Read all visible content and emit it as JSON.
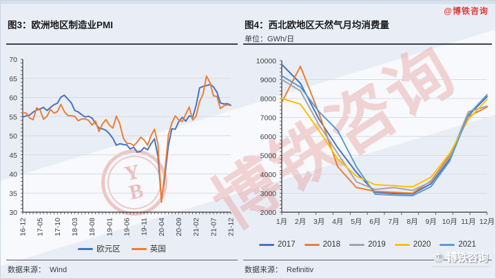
{
  "page": {
    "watermark_handle": "@博铁咨询",
    "watermark_text": "博铁咨询",
    "watermark_seal_top": "Y",
    "watermark_seal_bottom": "B",
    "brand": "博铁咨询"
  },
  "left_panel": {
    "title": "图3：欧洲地区制造业PMI",
    "source_label": "数据来源：",
    "source": "Wind"
  },
  "right_panel": {
    "title": "图4：西北欧地区天然气月均消费量",
    "unit_label": "单位：GWh/日",
    "source_label": "数据来源：",
    "source": "Refinitiv"
  },
  "chart_data": [
    {
      "type": "line",
      "title": "图3：欧洲地区制造业PMI",
      "x_start": "2016-12",
      "x_end": "2021-12",
      "x_freq": "monthly",
      "x_tick_labels": [
        "16-12",
        "17-05",
        "17-10",
        "18-03",
        "18-08",
        "19-01",
        "19-06",
        "19-11",
        "20-04",
        "20-09",
        "21-02",
        "21-07",
        "21-12"
      ],
      "x_tick_indices": [
        0,
        5,
        10,
        15,
        20,
        25,
        30,
        35,
        40,
        45,
        50,
        55,
        60
      ],
      "ylim": [
        30,
        70
      ],
      "ytick_step": 5,
      "grid": true,
      "legend_position": "bottom",
      "series": [
        {
          "name": "欧元区",
          "color": "#4472C4",
          "values": [
            54.9,
            55.2,
            55.4,
            56.2,
            56.7,
            57.0,
            57.4,
            56.6,
            57.4,
            58.1,
            58.5,
            60.1,
            60.6,
            59.6,
            58.6,
            56.6,
            56.2,
            55.5,
            54.9,
            55.1,
            54.6,
            53.2,
            52.0,
            51.8,
            51.4,
            50.5,
            49.3,
            47.5,
            47.9,
            47.7,
            47.6,
            46.5,
            47.0,
            45.7,
            45.9,
            46.9,
            46.3,
            47.9,
            49.2,
            44.5,
            33.4,
            39.4,
            47.4,
            51.8,
            51.7,
            53.7,
            54.8,
            53.8,
            55.2,
            54.8,
            57.9,
            62.5,
            62.9,
            63.1,
            63.4,
            62.8,
            61.4,
            58.6,
            58.3,
            58.4,
            58.0
          ]
        },
        {
          "name": "英国",
          "color": "#ED7D31",
          "values": [
            56.1,
            55.9,
            54.6,
            54.2,
            57.3,
            56.7,
            54.3,
            55.1,
            56.9,
            55.9,
            56.3,
            58.2,
            56.3,
            55.3,
            55.2,
            55.1,
            53.9,
            54.4,
            54.4,
            54.0,
            52.8,
            53.8,
            51.1,
            53.1,
            54.2,
            52.8,
            52.0,
            55.1,
            53.1,
            49.4,
            48.0,
            48.0,
            47.4,
            48.3,
            49.6,
            48.9,
            47.5,
            50.0,
            51.7,
            47.8,
            32.6,
            40.7,
            50.1,
            53.3,
            55.2,
            54.1,
            53.7,
            55.6,
            57.5,
            54.1,
            55.1,
            58.9,
            60.9,
            65.6,
            63.9,
            60.4,
            60.3,
            57.1,
            57.8,
            58.1,
            57.9
          ]
        }
      ]
    },
    {
      "type": "line",
      "title": "图4：西北欧地区天然气月均消费量",
      "ylabel": "GWh/日",
      "categories": [
        "1月",
        "2月",
        "3月",
        "4月",
        "5月",
        "6月",
        "7月",
        "8月",
        "9月",
        "10月",
        "11月",
        "12月"
      ],
      "ylim": [
        2000,
        10000
      ],
      "ytick_step": 1000,
      "grid": true,
      "legend_position": "bottom",
      "series": [
        {
          "name": "2017",
          "color": "#4472C4",
          "values": [
            9800,
            8800,
            6900,
            5400,
            4100,
            3050,
            2980,
            2960,
            3500,
            4800,
            7100,
            8100
          ]
        },
        {
          "name": "2018",
          "color": "#ED7D31",
          "values": [
            7800,
            9700,
            7200,
            4400,
            3300,
            3100,
            3050,
            3000,
            3650,
            5000,
            7050,
            7550
          ]
        },
        {
          "name": "2019",
          "color": "#A5A5A5",
          "values": [
            9000,
            8400,
            6600,
            5100,
            3600,
            3200,
            3300,
            3150,
            3600,
            4900,
            7300,
            7600
          ]
        },
        {
          "name": "2020",
          "color": "#FFC000",
          "values": [
            8000,
            7700,
            6300,
            4800,
            3900,
            3450,
            3400,
            3330,
            3850,
            5100,
            6900,
            7950
          ]
        },
        {
          "name": "2021",
          "color": "#5B9BD5",
          "values": [
            9200,
            8600,
            7300,
            6300,
            4400,
            2950,
            2900,
            2870,
            3350,
            4700,
            7150,
            8200
          ]
        }
      ]
    }
  ]
}
